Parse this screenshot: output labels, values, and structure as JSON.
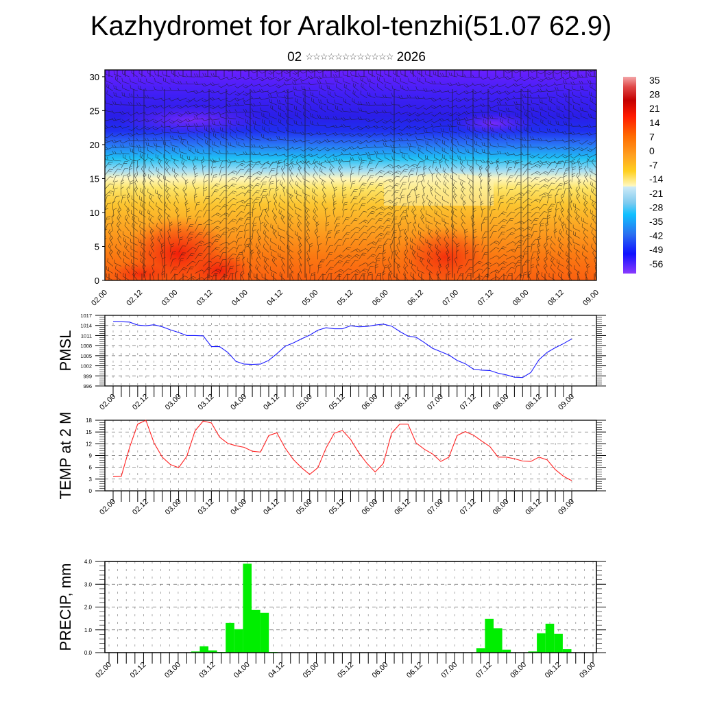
{
  "title": "Kazhydromet for Aralkol-tenzhi(51.07 62.9)",
  "subtitle": {
    "day": "02",
    "month_glyphs": "☆☆☆☆☆☆☆☆☆☆☆☆",
    "year": "2026"
  },
  "colors": {
    "pmsl_line": "#1a1aff",
    "temp_line": "#ff2020",
    "precip_bar": "#00ee00"
  },
  "chart_data": [
    {
      "type": "heatmap",
      "name": "temperature-wind-cross-section",
      "ylim": [
        0,
        31
      ],
      "yticks": [
        "0",
        "5",
        "10",
        "15",
        "20",
        "25",
        "30"
      ],
      "xticks": [
        "02.00",
        "02.12",
        "03.00",
        "03.12",
        "04.00",
        "04.12",
        "05.00",
        "05.12",
        "06.00",
        "06.12",
        "07.00",
        "07.12",
        "08.00",
        "08.12",
        "09.00"
      ],
      "colorbar": {
        "labels": [
          "35",
          "28",
          "21",
          "14",
          "7",
          "0",
          "-7",
          "-14",
          "-21",
          "-28",
          "-35",
          "-42",
          "-49",
          "-56"
        ],
        "range": [
          -60,
          38
        ]
      },
      "description_levels": "cold (purple/blue) aloft above ~15, warm (yellow/orange/red) below"
    },
    {
      "type": "line",
      "name": "pmsl",
      "ylabel": "PMSL",
      "ylim": [
        996,
        1017
      ],
      "yticks": [
        "996",
        "999",
        "1002",
        "1005",
        "1008",
        "1011",
        "1014",
        "1017"
      ],
      "xticks": [
        "02.00",
        "02.12",
        "03.00",
        "03.12",
        "04.00",
        "04.12",
        "05.00",
        "05.12",
        "06.00",
        "06.12",
        "07.00",
        "07.12",
        "08.00",
        "08.12",
        "09.00"
      ],
      "x_step_hours": 3,
      "values": [
        1015.2,
        1015.1,
        1015.0,
        1014.1,
        1013.9,
        1014.2,
        1013.6,
        1012.7,
        1011.9,
        1011.0,
        1011.0,
        1010.9,
        1007.7,
        1007.7,
        1006.0,
        1003.3,
        1002.5,
        1002.4,
        1002.5,
        1003.6,
        1005.6,
        1007.8,
        1008.8,
        1010.0,
        1011.1,
        1012.6,
        1013.3,
        1013.0,
        1013.0,
        1013.9,
        1013.6,
        1013.7,
        1014.1,
        1014.4,
        1013.8,
        1012.2,
        1010.8,
        1010.5,
        1008.9,
        1007.2,
        1006.2,
        1005.2,
        1003.6,
        1002.6,
        1001.0,
        1000.7,
        1000.6,
        999.8,
        999.3,
        998.6,
        998.5,
        1000.0,
        1003.8,
        1006.0,
        1007.4,
        1008.6,
        1010.0
      ]
    },
    {
      "type": "line",
      "name": "temp2m",
      "ylabel": "TEMP at 2 M",
      "ylim": [
        0,
        18
      ],
      "yticks": [
        "0",
        "3",
        "6",
        "9",
        "12",
        "15",
        "18"
      ],
      "xticks": [
        "02.00",
        "02.12",
        "03.00",
        "03.12",
        "04.00",
        "04.12",
        "05.00",
        "05.12",
        "06.00",
        "06.12",
        "07.00",
        "07.12",
        "08.00",
        "08.12",
        "09.00"
      ],
      "x_step_hours": 3,
      "values": [
        3.6,
        3.7,
        11.0,
        17.0,
        18.0,
        12.2,
        8.6,
        6.7,
        5.9,
        8.8,
        15.3,
        17.8,
        17.3,
        13.7,
        12.1,
        11.5,
        11.1,
        10.1,
        9.9,
        14.1,
        14.8,
        10.9,
        8.0,
        5.9,
        4.2,
        5.9,
        10.9,
        14.7,
        15.4,
        13.1,
        9.7,
        7.0,
        4.8,
        7.0,
        14.7,
        17.0,
        17.0,
        12.2,
        10.6,
        9.4,
        7.5,
        8.6,
        14.1,
        15.1,
        14.2,
        12.7,
        11.3,
        8.6,
        8.6,
        8.2,
        7.6,
        7.5,
        8.6,
        7.9,
        5.4,
        3.7,
        2.6
      ]
    },
    {
      "type": "bar",
      "name": "precip",
      "ylabel": "PRECIP, mm",
      "ylim": [
        0,
        4
      ],
      "yticks": [
        "0.0",
        "1.0",
        "2.0",
        "3.0",
        "4.0"
      ],
      "xticks": [
        "02.00",
        "02.12",
        "03.00",
        "03.12",
        "04.00",
        "04.12",
        "05.00",
        "05.12",
        "06.00",
        "06.12",
        "07.00",
        "07.12",
        "08.00",
        "08.12",
        "09.00"
      ],
      "x_step_hours": 3,
      "bars": [
        {
          "x": "03.06",
          "value": 0.05
        },
        {
          "x": "03.09",
          "value": 0.28
        },
        {
          "x": "03.12",
          "value": 0.1
        },
        {
          "x": "03.15",
          "value": 0.03
        },
        {
          "x": "03.18",
          "value": 1.3
        },
        {
          "x": "03.21",
          "value": 1.03
        },
        {
          "x": "04.00",
          "value": 3.9
        },
        {
          "x": "04.03",
          "value": 1.87
        },
        {
          "x": "04.06",
          "value": 1.75
        },
        {
          "x": "04.09",
          "value": 0.03
        },
        {
          "x": "07.09",
          "value": 0.2
        },
        {
          "x": "07.12",
          "value": 1.48
        },
        {
          "x": "07.15",
          "value": 1.07
        },
        {
          "x": "07.18",
          "value": 0.13
        },
        {
          "x": "08.03",
          "value": 0.05
        },
        {
          "x": "08.06",
          "value": 0.85
        },
        {
          "x": "08.09",
          "value": 1.27
        },
        {
          "x": "08.12",
          "value": 0.82
        },
        {
          "x": "08.15",
          "value": 0.15
        }
      ]
    }
  ]
}
